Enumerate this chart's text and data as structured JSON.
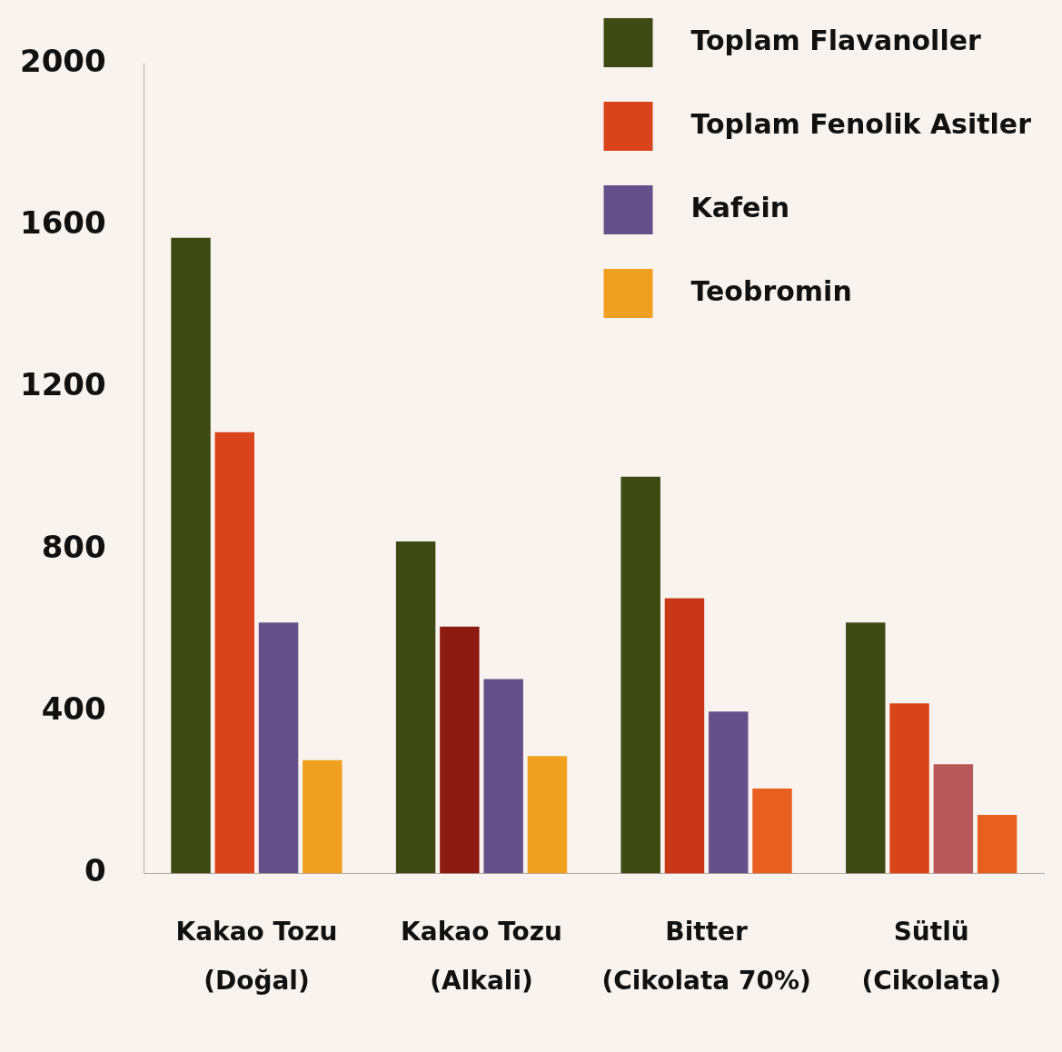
{
  "chart_data": {
    "type": "bar",
    "categories": [
      "Kakao Tozu (Doğal)",
      "Kakao Tozu (Alkali)",
      "Bitter (Cikolata 70%)",
      "Sütlü (Cikolata)"
    ],
    "series": [
      {
        "name": "Toplam Flavanoller",
        "color": "#3d4a14",
        "values": [
          1570,
          820,
          980,
          620
        ]
      },
      {
        "name": "Toplam Fenolik Asitler",
        "color": "#d9441a",
        "colors": [
          "#d9441a",
          "#8b1a10",
          "#c83818",
          "#d9441a"
        ],
        "values": [
          1090,
          610,
          680,
          420
        ]
      },
      {
        "name": "Kafein",
        "color": "#66508a",
        "colors": [
          "#66508a",
          "#66508a",
          "#66508a",
          "#b85858"
        ],
        "values": [
          620,
          480,
          400,
          270
        ]
      },
      {
        "name": "Teobromin",
        "color": "#f0a020",
        "colors": [
          "#f0a020",
          "#f0a020",
          "#e86020",
          "#e86020"
        ],
        "values": [
          280,
          290,
          210,
          145
        ]
      }
    ],
    "ylim": [
      0,
      2000
    ],
    "yticks": [
      0,
      400,
      800,
      1200,
      1600,
      2000
    ],
    "grid": false,
    "legend": "top right"
  }
}
